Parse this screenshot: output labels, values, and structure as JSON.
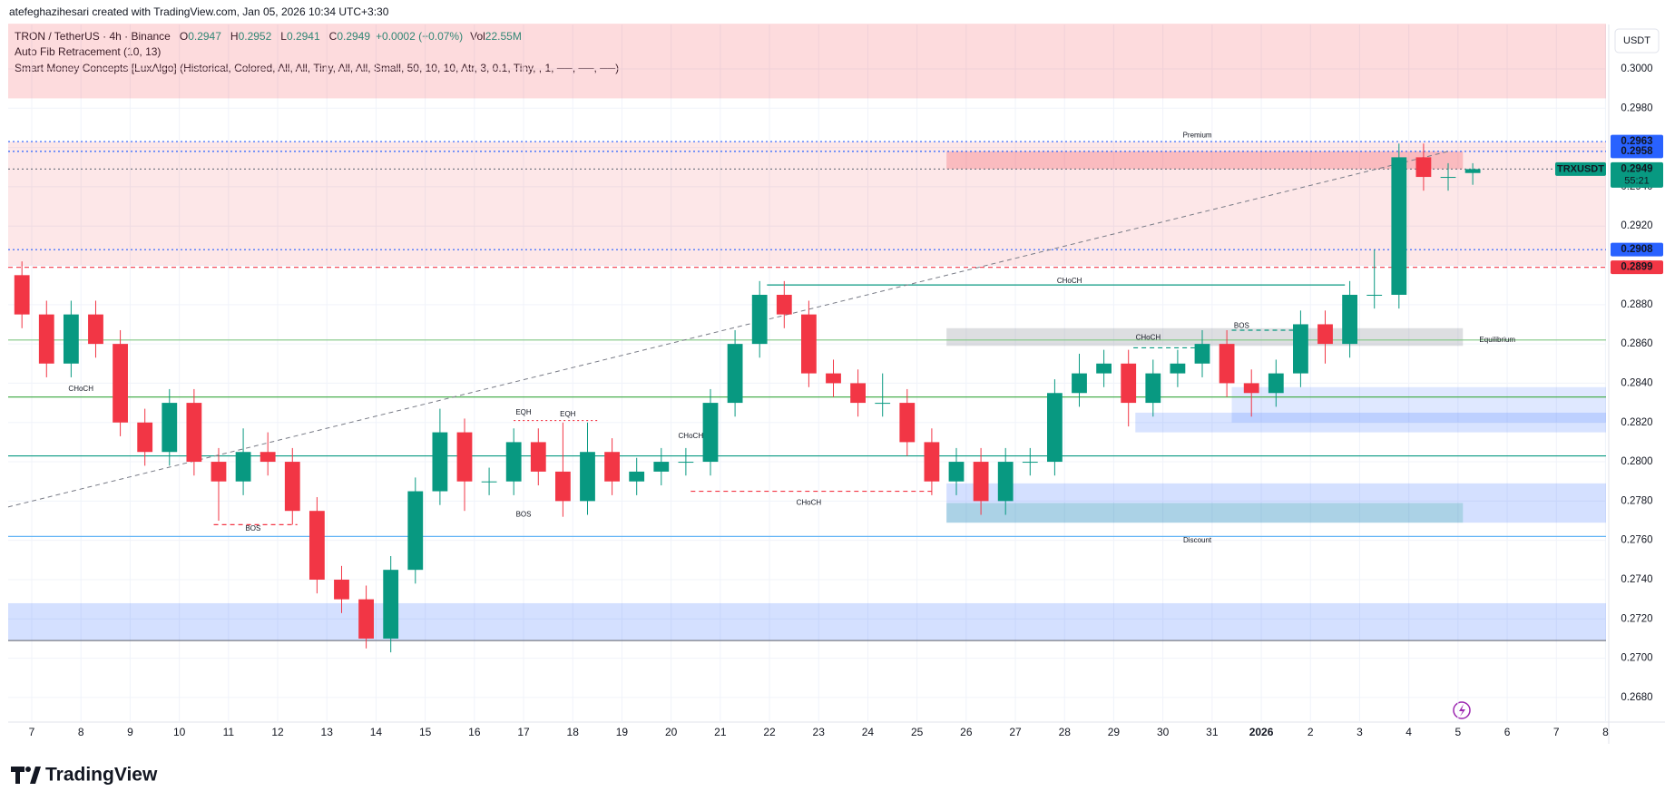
{
  "header": {
    "attribution": "atefeghazihesari created with TradingView.com, Jan 05, 2026 10:34 UTC+3:30",
    "symbol": "TRON / TetherUS · 4h · Binance",
    "o_label": "O",
    "open": 0.2947,
    "h_label": "H",
    "high": 0.2952,
    "l_label": "L",
    "low": 0.2941,
    "c_label": "C",
    "close": 0.2949,
    "change": "+0.0002 (+0.07%)",
    "vol_label": "Vol",
    "volume": "22.55M",
    "indicators": [
      "Auto Fib Retracement (10, 13)",
      "Smart Money Concepts [LuxAlgo] (Historical, Colored, All, All, Tiny, All, All, Small, 50, 10, 10, Atr, 3, 0.1, Tiny, , 1, ──, ──, ──)"
    ]
  },
  "chart_data": {
    "type": "candlestick",
    "up_color": "#089981",
    "down_color": "#f23645",
    "x": [
      -0.2,
      0.3,
      0.8,
      1.3,
      1.8,
      2.3,
      2.8,
      3.3,
      3.8,
      4.3,
      4.8,
      5.3,
      5.8,
      6.3,
      6.8,
      7.3,
      7.8,
      8.3,
      8.8,
      9.3,
      9.8,
      10.3,
      10.8,
      11.3,
      11.8,
      12.3,
      12.8,
      13.3,
      13.8,
      14.3,
      14.8,
      15.3,
      15.8,
      16.3,
      16.8,
      17.3,
      17.8,
      18.3,
      18.8,
      19.3,
      19.8,
      20.3,
      20.8,
      21.3,
      21.8,
      22.3,
      22.8,
      23.3,
      23.8,
      24.3,
      24.8,
      25.3,
      25.8,
      26.3,
      26.8,
      27.3,
      27.8,
      28.3,
      28.8,
      29.3
    ],
    "open": [
      0.2895,
      0.2875,
      0.285,
      0.2875,
      0.286,
      0.282,
      0.2805,
      0.283,
      0.28,
      0.279,
      0.2805,
      0.28,
      0.2775,
      0.274,
      0.273,
      0.271,
      0.2745,
      0.2785,
      0.2815,
      0.279,
      0.279,
      0.281,
      0.2795,
      0.278,
      0.2805,
      0.279,
      0.2795,
      0.28,
      0.28,
      0.283,
      0.286,
      0.2885,
      0.2875,
      0.2845,
      0.284,
      0.283,
      0.283,
      0.281,
      0.279,
      0.28,
      0.278,
      0.28,
      0.28,
      0.2835,
      0.2845,
      0.285,
      0.283,
      0.2845,
      0.285,
      0.286,
      0.284,
      0.2835,
      0.2845,
      0.287,
      0.286,
      0.2885,
      0.2885,
      0.2955,
      0.2945,
      0.2947
    ],
    "high": [
      0.2902,
      0.2882,
      0.2882,
      0.2882,
      0.2867,
      0.2827,
      0.2837,
      0.2837,
      0.2807,
      0.2817,
      0.2815,
      0.2807,
      0.2782,
      0.2747,
      0.2737,
      0.2752,
      0.2792,
      0.2827,
      0.2822,
      0.2797,
      0.2817,
      0.2817,
      0.282,
      0.282,
      0.2812,
      0.2802,
      0.2807,
      0.2807,
      0.2837,
      0.2867,
      0.2892,
      0.2892,
      0.2882,
      0.2852,
      0.2847,
      0.2845,
      0.2837,
      0.2817,
      0.2807,
      0.2807,
      0.2807,
      0.2807,
      0.2842,
      0.2855,
      0.2857,
      0.2857,
      0.2852,
      0.2857,
      0.2867,
      0.2867,
      0.2847,
      0.2852,
      0.2877,
      0.2877,
      0.2892,
      0.2908,
      0.2962,
      0.2962,
      0.2952,
      0.2952
    ],
    "low": [
      0.2868,
      0.2843,
      0.2843,
      0.2853,
      0.2813,
      0.2798,
      0.2798,
      0.2793,
      0.277,
      0.2783,
      0.2793,
      0.2768,
      0.2733,
      0.2723,
      0.2705,
      0.2703,
      0.2738,
      0.2778,
      0.2775,
      0.2783,
      0.2783,
      0.2788,
      0.2772,
      0.2773,
      0.2783,
      0.2783,
      0.2788,
      0.2793,
      0.2793,
      0.2823,
      0.2853,
      0.2868,
      0.2838,
      0.2833,
      0.2823,
      0.2823,
      0.2803,
      0.2783,
      0.2783,
      0.2773,
      0.2773,
      0.2793,
      0.2793,
      0.2828,
      0.2838,
      0.2818,
      0.2823,
      0.2838,
      0.2843,
      0.2833,
      0.2823,
      0.2828,
      0.2838,
      0.285,
      0.2853,
      0.2878,
      0.2878,
      0.2938,
      0.2938,
      0.2941
    ],
    "close": [
      0.2875,
      0.285,
      0.2875,
      0.286,
      0.282,
      0.2805,
      0.283,
      0.28,
      0.279,
      0.2805,
      0.28,
      0.2775,
      0.274,
      0.273,
      0.271,
      0.2745,
      0.2785,
      0.2815,
      0.279,
      0.279,
      0.281,
      0.2795,
      0.278,
      0.2805,
      0.279,
      0.2795,
      0.28,
      0.28,
      0.283,
      0.286,
      0.2885,
      0.2875,
      0.2845,
      0.284,
      0.283,
      0.283,
      0.281,
      0.279,
      0.28,
      0.278,
      0.28,
      0.28,
      0.2835,
      0.2845,
      0.285,
      0.283,
      0.2845,
      0.285,
      0.286,
      0.284,
      0.2835,
      0.2845,
      0.287,
      0.286,
      0.2885,
      0.2885,
      0.2955,
      0.2945,
      0.2945,
      0.2949
    ],
    "xlim": [
      -0.48,
      32.01
    ],
    "xticks": [
      {
        "value": 0,
        "label": "7"
      },
      {
        "value": 1,
        "label": "8"
      },
      {
        "value": 2,
        "label": "9"
      },
      {
        "value": 3,
        "label": "10"
      },
      {
        "value": 4,
        "label": "11"
      },
      {
        "value": 5,
        "label": "12"
      },
      {
        "value": 6,
        "label": "13"
      },
      {
        "value": 7,
        "label": "14"
      },
      {
        "value": 8,
        "label": "15"
      },
      {
        "value": 9,
        "label": "16"
      },
      {
        "value": 10,
        "label": "17"
      },
      {
        "value": 11,
        "label": "18"
      },
      {
        "value": 12,
        "label": "19"
      },
      {
        "value": 13,
        "label": "20"
      },
      {
        "value": 14,
        "label": "21"
      },
      {
        "value": 15,
        "label": "22"
      },
      {
        "value": 16,
        "label": "23"
      },
      {
        "value": 17,
        "label": "24"
      },
      {
        "value": 18,
        "label": "25"
      },
      {
        "value": 19,
        "label": "26"
      },
      {
        "value": 20,
        "label": "27"
      },
      {
        "value": 21,
        "label": "28"
      },
      {
        "value": 22,
        "label": "29"
      },
      {
        "value": 23,
        "label": "30"
      },
      {
        "value": 24,
        "label": "31"
      },
      {
        "value": 25,
        "label": "2026"
      },
      {
        "value": 26,
        "label": "2"
      },
      {
        "value": 27,
        "label": "3"
      },
      {
        "value": 28,
        "label": "4"
      },
      {
        "value": 29,
        "label": "5"
      },
      {
        "value": 30,
        "label": "6"
      },
      {
        "value": 31,
        "label": "7"
      },
      {
        "value": 32,
        "label": "8"
      }
    ],
    "ylim": [
      0.26675,
      0.30226
    ],
    "yticks": [
      {
        "value": 0.3,
        "label": "0.3000"
      },
      {
        "value": 0.298,
        "label": "0.2980"
      },
      {
        "value": 0.296,
        "label": "0.2960"
      },
      {
        "value": 0.294,
        "label": "0.2940"
      },
      {
        "value": 0.292,
        "label": "0.2920"
      },
      {
        "value": 0.29,
        "label": "0.2900"
      },
      {
        "value": 0.288,
        "label": "0.2880"
      },
      {
        "value": 0.286,
        "label": "0.2860"
      },
      {
        "value": 0.284,
        "label": "0.2840"
      },
      {
        "value": 0.282,
        "label": "0.2820"
      },
      {
        "value": 0.28,
        "label": "0.2800"
      },
      {
        "value": 0.278,
        "label": "0.2780"
      },
      {
        "value": 0.276,
        "label": "0.2760"
      },
      {
        "value": 0.274,
        "label": "0.2740"
      },
      {
        "value": 0.272,
        "label": "0.2720"
      },
      {
        "value": 0.27,
        "label": "0.2700"
      },
      {
        "value": 0.268,
        "label": "0.2680"
      }
    ],
    "grid": true,
    "currency": "USDT",
    "zones": [
      {
        "x0": -0.48,
        "x1": 32.01,
        "top": 0.3023,
        "bottom": 0.2985,
        "color": "rgba(242,54,69,0.18)"
      },
      {
        "x0": -0.48,
        "x1": 32.01,
        "top": 0.2963,
        "bottom": 0.29,
        "color": "rgba(242,54,69,0.12)"
      },
      {
        "x0": 18.6,
        "x1": 29.1,
        "top": 0.2958,
        "bottom": 0.2949,
        "color": "rgba(242,54,69,0.25)"
      },
      {
        "x0": 18.6,
        "x1": 29.1,
        "top": 0.2868,
        "bottom": 0.2859,
        "color": "rgba(120,123,134,0.25)"
      },
      {
        "x0": 24.4,
        "x1": 32.01,
        "top": 0.2838,
        "bottom": 0.282,
        "color": "rgba(41,98,255,0.15)"
      },
      {
        "x0": 22.44,
        "x1": 32.01,
        "top": 0.2825,
        "bottom": 0.2815,
        "color": "rgba(41,98,255,0.18)"
      },
      {
        "x0": 18.6,
        "x1": 32.01,
        "top": 0.2789,
        "bottom": 0.2769,
        "color": "rgba(41,98,255,0.2)"
      },
      {
        "x0": 18.6,
        "x1": 29.1,
        "top": 0.2779,
        "bottom": 0.2769,
        "color": "rgba(8,153,129,0.2)"
      },
      {
        "x0": -0.48,
        "x1": 32.01,
        "top": 0.2728,
        "bottom": 0.2709,
        "color": "rgba(41,98,255,0.2)"
      }
    ],
    "levels": [
      {
        "price": 0.2963,
        "x0": -0.48,
        "x1": 32.01,
        "color": "#2962ff",
        "style": "dotted"
      },
      {
        "price": 0.2958,
        "x0": -0.48,
        "x1": 32.01,
        "color": "#2962ff",
        "style": "dotted"
      },
      {
        "price": 0.2949,
        "x0": -0.48,
        "x1": 32.01,
        "color": "#787b86",
        "style": "dotted"
      },
      {
        "price": 0.2908,
        "x0": -0.48,
        "x1": 32.01,
        "color": "#2962ff",
        "style": "dotted"
      },
      {
        "price": 0.2899,
        "x0": -0.48,
        "x1": 32.01,
        "color": "#f23645",
        "style": "dashed"
      },
      {
        "price": 0.289,
        "x0": 14.95,
        "x1": 26.7,
        "color": "#089981",
        "style": "solid"
      },
      {
        "price": 0.2862,
        "x0": -0.48,
        "x1": 32.01,
        "color": "#81c784",
        "style": "solid"
      },
      {
        "price": 0.2833,
        "x0": -0.48,
        "x1": 32.01,
        "color": "#4caf50",
        "style": "solid"
      },
      {
        "price": 0.2803,
        "x0": -0.48,
        "x1": 32.01,
        "color": "#089981",
        "style": "solid"
      },
      {
        "price": 0.2762,
        "x0": -0.48,
        "x1": 32.01,
        "color": "#64b5f6",
        "style": "solid"
      },
      {
        "price": 0.2709,
        "x0": -0.48,
        "x1": 32.01,
        "color": "#787b86",
        "style": "solid"
      },
      {
        "price": 0.2768,
        "x0": 3.7,
        "x1": 5.4,
        "color": "#f23645",
        "style": "dashed"
      },
      {
        "price": 0.2785,
        "x0": 13.4,
        "x1": 18.3,
        "color": "#f23645",
        "style": "dashed"
      },
      {
        "price": 0.2821,
        "x0": 9.8,
        "x1": 11.5,
        "color": "#f23645",
        "style": "dotted"
      },
      {
        "price": 0.2858,
        "x0": 22.4,
        "x1": 23.8,
        "color": "#089981",
        "style": "dashed"
      },
      {
        "price": 0.2867,
        "x0": 24.4,
        "x1": 25.8,
        "color": "#089981",
        "style": "dashed"
      }
    ],
    "fib_line": {
      "x0": -0.48,
      "y0": 0.2777,
      "x1": 28.8,
      "y1": 0.2958,
      "color": "#787b86"
    },
    "annotations": [
      {
        "text": "Premium",
        "x": 23.7,
        "price": 0.2966,
        "color": "#f23645"
      },
      {
        "text": "CHoCH",
        "x": 21.1,
        "price": 0.2892,
        "color": "#089981"
      },
      {
        "text": "Equilibrium",
        "x": 29.8,
        "price": 0.2862,
        "color": "#b2b5be"
      },
      {
        "text": "Discount",
        "x": 23.7,
        "price": 0.276,
        "color": "#089981"
      },
      {
        "text": "CHoCH",
        "x": 1.0,
        "price": 0.2837,
        "color": "#f23645"
      },
      {
        "text": "BOS",
        "x": 4.5,
        "price": 0.2766,
        "color": "#f23645"
      },
      {
        "text": "EQH",
        "x": 10.0,
        "price": 0.2825,
        "color": "#f23645"
      },
      {
        "text": "EQH",
        "x": 10.9,
        "price": 0.2824,
        "color": "#f23645"
      },
      {
        "text": "BOS",
        "x": 10.0,
        "price": 0.2773,
        "color": "#f23645"
      },
      {
        "text": "CHoCH",
        "x": 15.8,
        "price": 0.2779,
        "color": "#f23645"
      },
      {
        "text": "CHoCH",
        "x": 13.4,
        "price": 0.2813,
        "color": "#089981"
      },
      {
        "text": "CHoCH",
        "x": 22.7,
        "price": 0.2863,
        "color": "#089981"
      },
      {
        "text": "BOS",
        "x": 24.6,
        "price": 0.2869,
        "color": "#089981"
      }
    ],
    "price_tags": [
      {
        "value": 0.2963,
        "color": "#2962ff"
      },
      {
        "value": 0.2958,
        "color": "#2962ff"
      },
      {
        "value": 0.2949,
        "color": "#089981",
        "symbol": "TRXUSDT",
        "countdown": "55:21"
      },
      {
        "value": 0.2908,
        "color": "#2962ff"
      },
      {
        "value": 0.2899,
        "color": "#f23645"
      }
    ]
  },
  "footer": {
    "logo": "TradingView"
  }
}
